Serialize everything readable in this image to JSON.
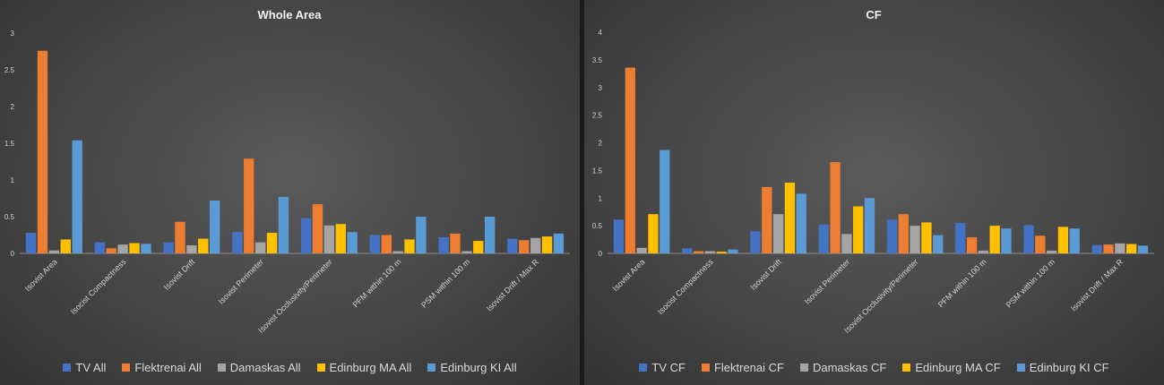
{
  "colors": [
    "#4472c4",
    "#ed7d31",
    "#a5a5a5",
    "#ffc000",
    "#5b9bd5"
  ],
  "chart_data": [
    {
      "type": "bar",
      "title": "Whole Area",
      "categories": [
        "Isovist Area",
        "Isocist Compactness",
        "Isovist Drift",
        "Isovist Perimeter",
        "Isovist Occlusivity/Perimeter",
        "PFM within 100 m",
        "PSM within 100 m",
        "Isovist Drift / Max R"
      ],
      "ylim": [
        0,
        3
      ],
      "yticks": [
        "0",
        "0.5",
        "1",
        "1.5",
        "2",
        "2.5",
        "3"
      ],
      "grid": false,
      "legend_position": "bottom",
      "series": [
        {
          "name": "TV All",
          "values": [
            0.28,
            0.15,
            0.15,
            0.29,
            0.48,
            0.25,
            0.22,
            0.2
          ]
        },
        {
          "name": "Flektrenai All",
          "values": [
            2.76,
            0.07,
            0.43,
            1.29,
            0.67,
            0.25,
            0.27,
            0.18
          ]
        },
        {
          "name": "Damaskas All",
          "values": [
            0.04,
            0.12,
            0.11,
            0.15,
            0.38,
            0.03,
            0.03,
            0.21
          ]
        },
        {
          "name": "Edinburg MA All",
          "values": [
            0.19,
            0.14,
            0.2,
            0.28,
            0.4,
            0.19,
            0.17,
            0.23
          ]
        },
        {
          "name": "Edinburg KI All",
          "values": [
            1.54,
            0.13,
            0.72,
            0.77,
            0.29,
            0.5,
            0.5,
            0.27
          ]
        }
      ]
    },
    {
      "type": "bar",
      "title": "CF",
      "categories": [
        "Isovist Area",
        "Isocist Compactness",
        "Isovist Drift",
        "Isovist Perimeter",
        "Isovist Occlusivity/Perimeter",
        "PFM within 100 m",
        "PSM within 100 m",
        "Isovist Drift / Max R"
      ],
      "ylim": [
        0,
        4
      ],
      "yticks": [
        "0",
        "0.5",
        "1",
        "1.5",
        "2",
        "2.5",
        "3",
        "3.5",
        "4"
      ],
      "grid": false,
      "legend_position": "bottom",
      "series": [
        {
          "name": "TV CF",
          "values": [
            0.61,
            0.09,
            0.4,
            0.52,
            0.61,
            0.55,
            0.51,
            0.15
          ]
        },
        {
          "name": "Flektrenai CF",
          "values": [
            3.36,
            0.04,
            1.2,
            1.65,
            0.71,
            0.29,
            0.32,
            0.16
          ]
        },
        {
          "name": "Damaskas CF",
          "values": [
            0.1,
            0.04,
            0.71,
            0.35,
            0.5,
            0.05,
            0.05,
            0.18
          ]
        },
        {
          "name": "Edinburg MA CF",
          "values": [
            0.71,
            0.03,
            1.28,
            0.85,
            0.56,
            0.5,
            0.48,
            0.17
          ]
        },
        {
          "name": "Edinburg KI CF",
          "values": [
            1.87,
            0.07,
            1.08,
            1.0,
            0.33,
            0.45,
            0.45,
            0.14
          ]
        }
      ]
    }
  ]
}
